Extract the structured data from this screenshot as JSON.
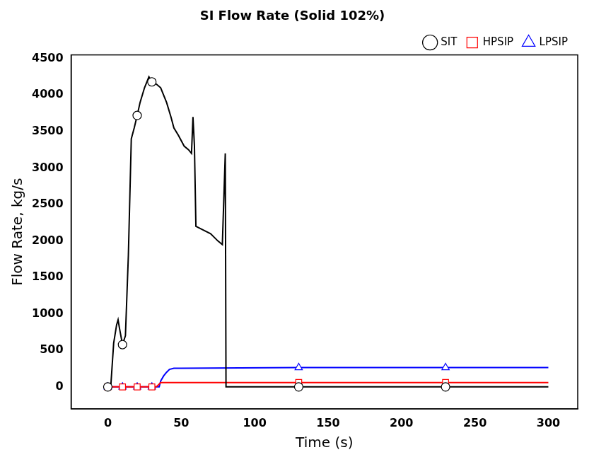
{
  "chart_data": {
    "type": "line",
    "title": "SI Flow Rate (Solid 102%)",
    "x_label": "Time (s)",
    "y_label": "Flow Rate, kg/s",
    "xlim": [
      -25,
      320
    ],
    "xticks": [
      0,
      50,
      100,
      150,
      200,
      250,
      300
    ],
    "ylim": [
      -300,
      4550
    ],
    "yticks": [
      0,
      500,
      1000,
      1500,
      2000,
      2500,
      3000,
      3500,
      4000,
      4500
    ],
    "grid": false,
    "legend": "upper right",
    "series": [
      {
        "name": "SIT",
        "color": "#000000",
        "marker": "circle",
        "line_style": "solid",
        "x": [
          0,
          2,
          4,
          6,
          7,
          8,
          10,
          12,
          14,
          16,
          18,
          20,
          22,
          25,
          28,
          30,
          33,
          36,
          40,
          43,
          45,
          48,
          52,
          55,
          57,
          58,
          59,
          60,
          65,
          70,
          75,
          78,
          80,
          80.5,
          130,
          230,
          300
        ],
        "values": [
          0,
          0,
          600,
          850,
          920,
          800,
          580,
          700,
          1800,
          3400,
          3550,
          3720,
          3900,
          4100,
          4250,
          4180,
          4150,
          4100,
          3900,
          3700,
          3550,
          3450,
          3300,
          3250,
          3200,
          3700,
          3300,
          2200,
          2150,
          2100,
          2000,
          1950,
          3200,
          0,
          0,
          0,
          0
        ]
      },
      {
        "name": "HPSIP",
        "color": "#ff0000",
        "marker": "square",
        "line_style": "solid",
        "x": [
          0,
          10,
          20,
          30,
          33,
          36,
          130,
          230,
          300
        ],
        "values": [
          0,
          0,
          0,
          0,
          0,
          60,
          60,
          60,
          60
        ]
      },
      {
        "name": "LPSIP",
        "color": "#0000ff",
        "marker": "triangle",
        "line_style": "solid",
        "x": [
          0,
          10,
          20,
          30,
          35,
          36,
          38,
          40,
          42,
          45,
          50,
          130,
          230,
          300
        ],
        "values": [
          0,
          0,
          0,
          0,
          0,
          80,
          150,
          200,
          240,
          255,
          255,
          265,
          265,
          265
        ]
      }
    ]
  }
}
